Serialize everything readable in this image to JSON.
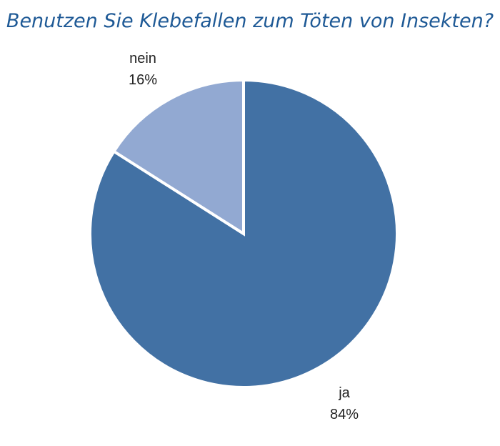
{
  "chart_data": {
    "type": "pie",
    "title": "Benutzen Sie Klebefallen zum Töten von Insekten?",
    "categories": [
      "ja",
      "nein"
    ],
    "values": [
      84,
      16
    ],
    "value_labels": [
      "84%",
      "16%"
    ],
    "colors": [
      "#4271a4",
      "#92a9d2"
    ],
    "legend": "none"
  }
}
